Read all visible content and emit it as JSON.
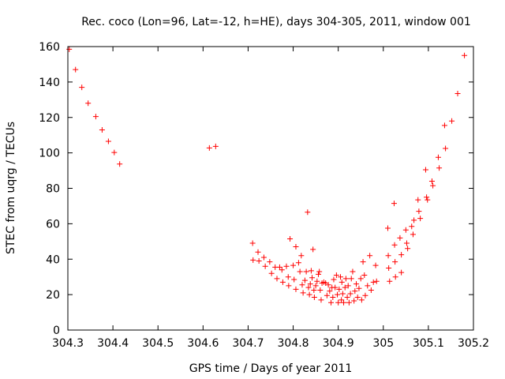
{
  "chart_data": {
    "type": "scatter",
    "title": "Rec. coco (Lon=96, Lat=-12, h=HE), days 304-305, 2011, window 001",
    "xlabel": "GPS time / Days of year 2011",
    "ylabel": "STEC from uqrg / TECUs",
    "xlim": [
      304.3,
      305.2
    ],
    "ylim": [
      0,
      160
    ],
    "x_ticks": [
      304.3,
      304.4,
      304.5,
      304.6,
      304.7,
      304.8,
      304.9,
      305.0,
      305.1,
      305.2
    ],
    "x_tick_labels": [
      "304.3",
      "304.4",
      "304.5",
      "304.6",
      "304.7",
      "304.8",
      "304.9",
      "305",
      "305.1",
      "305.2"
    ],
    "y_ticks": [
      0,
      20,
      40,
      60,
      80,
      100,
      120,
      140,
      160
    ],
    "y_tick_labels": [
      "0",
      "20",
      "40",
      "60",
      "80",
      "100",
      "120",
      "140",
      "160"
    ],
    "marker": "+",
    "color": "#ff0000",
    "series": [
      {
        "name": "STEC",
        "points": [
          [
            304.303,
            158.5
          ],
          [
            304.317,
            147
          ],
          [
            304.331,
            137
          ],
          [
            304.345,
            128
          ],
          [
            304.362,
            120.5
          ],
          [
            304.376,
            113
          ],
          [
            304.39,
            106.5
          ],
          [
            304.403,
            100.2
          ],
          [
            304.415,
            93.7
          ],
          [
            304.614,
            102.8
          ],
          [
            304.628,
            103.7
          ],
          [
            304.71,
            49
          ],
          [
            304.711,
            39.5
          ],
          [
            304.722,
            44
          ],
          [
            304.724,
            39
          ],
          [
            304.735,
            41
          ],
          [
            304.738,
            36
          ],
          [
            304.748,
            38.5
          ],
          [
            304.752,
            32
          ],
          [
            304.76,
            35.5
          ],
          [
            304.764,
            29
          ],
          [
            304.77,
            35.5
          ],
          [
            304.775,
            34
          ],
          [
            304.777,
            27
          ],
          [
            304.785,
            36
          ],
          [
            304.789,
            30
          ],
          [
            304.79,
            25
          ],
          [
            304.793,
            51.5
          ],
          [
            304.8,
            36.5
          ],
          [
            304.802,
            28.5
          ],
          [
            304.806,
            23
          ],
          [
            304.806,
            47
          ],
          [
            304.812,
            38
          ],
          [
            304.815,
            33
          ],
          [
            304.818,
            42
          ],
          [
            304.82,
            25.5
          ],
          [
            304.822,
            21
          ],
          [
            304.826,
            28
          ],
          [
            304.829,
            33
          ],
          [
            304.832,
            66.5
          ],
          [
            304.834,
            24
          ],
          [
            304.836,
            20
          ],
          [
            304.838,
            26
          ],
          [
            304.84,
            33.5
          ],
          [
            304.842,
            29.5
          ],
          [
            304.844,
            45.5
          ],
          [
            304.846,
            22.5
          ],
          [
            304.847,
            18.5
          ],
          [
            304.85,
            25
          ],
          [
            304.853,
            27.5
          ],
          [
            304.856,
            31.5
          ],
          [
            304.858,
            33
          ],
          [
            304.86,
            22.5
          ],
          [
            304.862,
            17
          ],
          [
            304.864,
            26.5
          ],
          [
            304.868,
            27
          ],
          [
            304.872,
            26.5
          ],
          [
            304.875,
            19.5
          ],
          [
            304.878,
            25.5
          ],
          [
            304.881,
            22
          ],
          [
            304.884,
            15.5
          ],
          [
            304.886,
            24
          ],
          [
            304.888,
            18.5
          ],
          [
            304.89,
            28.5
          ],
          [
            304.893,
            24
          ],
          [
            304.896,
            31
          ],
          [
            304.898,
            20
          ],
          [
            304.9,
            15.5
          ],
          [
            304.902,
            23
          ],
          [
            304.905,
            30
          ],
          [
            304.907,
            17
          ],
          [
            304.908,
            27
          ],
          [
            304.91,
            20.5
          ],
          [
            304.912,
            15.5
          ],
          [
            304.915,
            24
          ],
          [
            304.917,
            29
          ],
          [
            304.92,
            18.5
          ],
          [
            304.922,
            25
          ],
          [
            304.924,
            15.5
          ],
          [
            304.927,
            20.5
          ],
          [
            304.929,
            29
          ],
          [
            304.932,
            33
          ],
          [
            304.935,
            16.5
          ],
          [
            304.937,
            22
          ],
          [
            304.94,
            26
          ],
          [
            304.943,
            18.5
          ],
          [
            304.946,
            23.5
          ],
          [
            304.95,
            29
          ],
          [
            304.952,
            17
          ],
          [
            304.955,
            38.5
          ],
          [
            304.958,
            31
          ],
          [
            304.96,
            19.5
          ],
          [
            304.965,
            25
          ],
          [
            304.97,
            42
          ],
          [
            304.973,
            22.5
          ],
          [
            304.978,
            27
          ],
          [
            304.983,
            36.5
          ],
          [
            304.985,
            27.5
          ],
          [
            305.01,
            57.5
          ],
          [
            305.011,
            42
          ],
          [
            305.012,
            35
          ],
          [
            305.014,
            27.5
          ],
          [
            305.024,
            71.5
          ],
          [
            305.025,
            48
          ],
          [
            305.026,
            38.5
          ],
          [
            305.027,
            30
          ],
          [
            305.037,
            52
          ],
          [
            305.04,
            42.5
          ],
          [
            305.04,
            32.5
          ],
          [
            305.05,
            56.5
          ],
          [
            305.052,
            49
          ],
          [
            305.054,
            46
          ],
          [
            305.063,
            58.5
          ],
          [
            305.066,
            54
          ],
          [
            305.068,
            62
          ],
          [
            305.077,
            73.5
          ],
          [
            305.079,
            67
          ],
          [
            305.082,
            63
          ],
          [
            305.094,
            90.5
          ],
          [
            305.096,
            75
          ],
          [
            305.098,
            73.5
          ],
          [
            305.108,
            84
          ],
          [
            305.11,
            81.5
          ],
          [
            305.122,
            97.5
          ],
          [
            305.124,
            91.5
          ],
          [
            305.136,
            115.5
          ],
          [
            305.138,
            102.5
          ],
          [
            305.152,
            118
          ],
          [
            305.165,
            133.5
          ],
          [
            305.18,
            155
          ]
        ]
      }
    ]
  }
}
